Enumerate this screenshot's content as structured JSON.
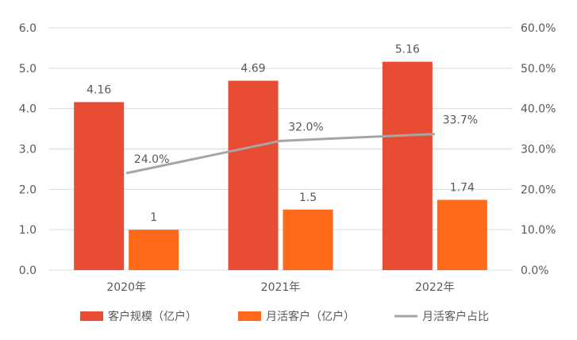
{
  "chart_data": {
    "type": "bar",
    "title": "",
    "categories": [
      "2020年",
      "2021年",
      "2022年"
    ],
    "series": [
      {
        "name": "客户规模（亿户）",
        "type": "bar",
        "axis": "left",
        "color": "#E84C33",
        "values": [
          4.16,
          4.69,
          5.16
        ],
        "labels": [
          "4.16",
          "4.69",
          "5.16"
        ]
      },
      {
        "name": "月活客户（亿户）",
        "type": "bar",
        "axis": "left",
        "color": "#FF6A1A",
        "values": [
          1,
          1.5,
          1.74
        ],
        "labels": [
          "1",
          "1.5",
          "1.74"
        ]
      },
      {
        "name": "月活客户占比",
        "type": "line",
        "axis": "right",
        "color": "#A6A6A6",
        "values": [
          24.0,
          32.0,
          33.7
        ],
        "labels": [
          "24.0%",
          "32.0%",
          "33.7%"
        ]
      }
    ],
    "y_left": {
      "ylim": [
        0,
        6
      ],
      "ticks": [
        "0.0",
        "1.0",
        "2.0",
        "3.0",
        "4.0",
        "5.0",
        "6.0"
      ]
    },
    "y_right": {
      "ylim": [
        0,
        60
      ],
      "ticks": [
        "0.0%",
        "10.0%",
        "20.0%",
        "30.0%",
        "40.0%",
        "50.0%",
        "60.0%"
      ]
    },
    "grid": true,
    "legend": "bottom"
  }
}
